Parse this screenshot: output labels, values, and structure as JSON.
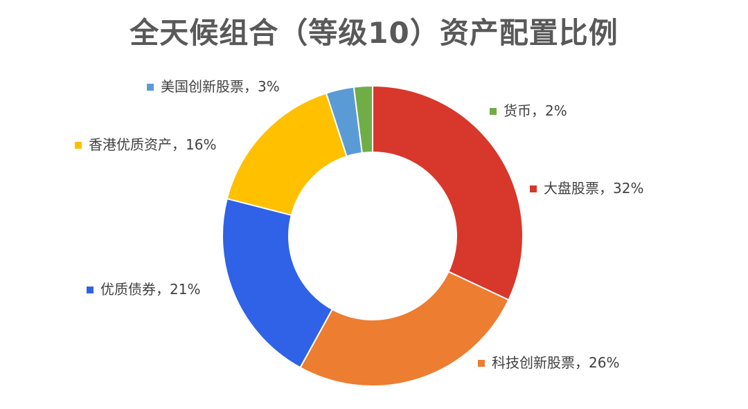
{
  "chart_data": {
    "type": "pie",
    "variant": "donut",
    "title": "全天候组合（等级10）资产配置比例",
    "legend_placement": "labels beside slices",
    "slices": [
      {
        "name": "大盘股票",
        "value": 32,
        "label": "大盘股票，32%",
        "color": "#D7382B"
      },
      {
        "name": "科技创新股票",
        "value": 26,
        "label": "科技创新股票，26%",
        "color": "#ED7D31"
      },
      {
        "name": "优质债券",
        "value": 21,
        "label": "优质债券，21%",
        "color": "#2F62E6"
      },
      {
        "name": "香港优质资产",
        "value": 16,
        "label": "香港优质资产，16%",
        "color": "#FFC000"
      },
      {
        "name": "美国创新股票",
        "value": 3,
        "label": "美国创新股票，3%",
        "color": "#5B9BD5"
      },
      {
        "name": "货币",
        "value": 2,
        "label": "货币，2%",
        "color": "#70AD47"
      }
    ]
  }
}
